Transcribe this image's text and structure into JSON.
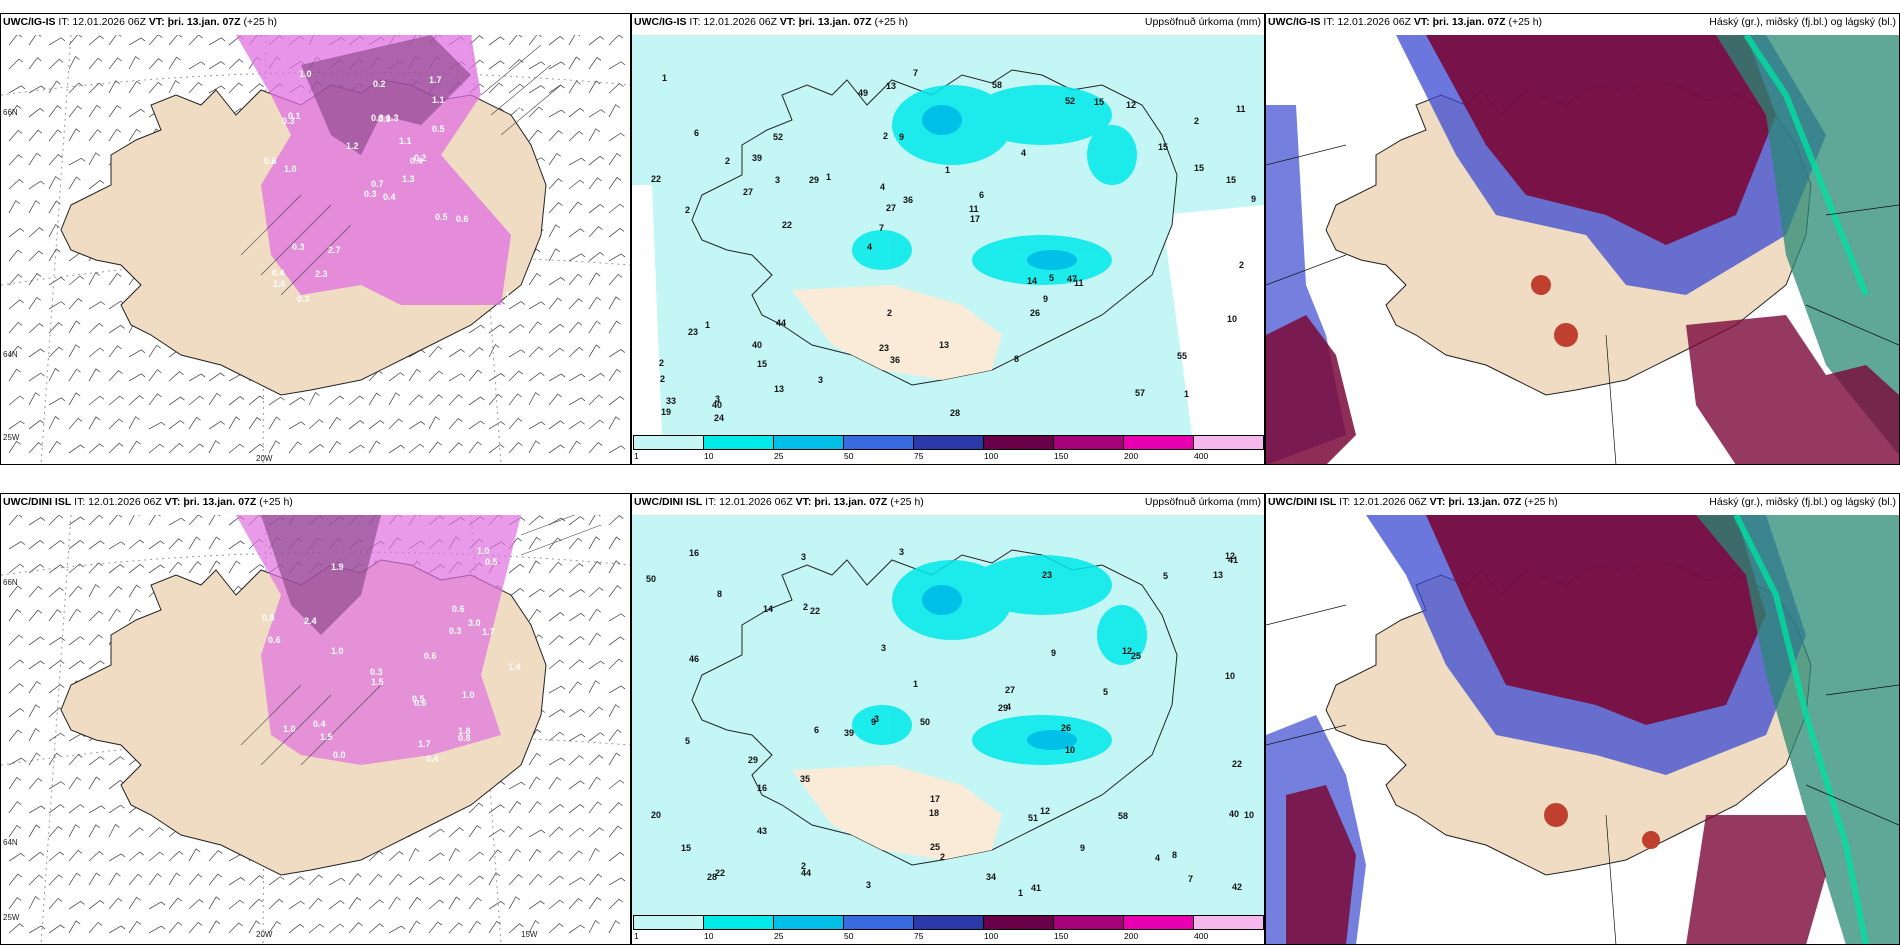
{
  "panels": {
    "top_left": {
      "model": "UWC/IG-IS",
      "it": "IT: 12.01.2026 06Z",
      "vt_label": "VT:",
      "vt": "þri. 13.jan. 07Z",
      "lead": "(+25 h)",
      "right": ""
    },
    "top_mid": {
      "model": "UWC/IG-IS",
      "it": "IT: 12.01.2026 06Z",
      "vt_label": "VT:",
      "vt": "þri. 13.jan. 07Z",
      "lead": "(+25 h)",
      "right": "Uppsöfnuð úrkoma (mm)"
    },
    "top_right": {
      "model": "UWC/IG-IS",
      "it": "IT: 12.01.2026 06Z",
      "vt_label": "VT:",
      "vt": "þri. 13.jan. 07Z",
      "lead": "(+25 h)",
      "right": "Háský (gr.), miðský (fj.bl.) og lágský (bl.)"
    },
    "bottom_left": {
      "model": "UWC/DINI ISL",
      "it": "IT: 12.01.2026 06Z",
      "vt_label": "VT:",
      "vt": "þri. 13.jan. 07Z",
      "lead": "(+25 h)",
      "right": ""
    },
    "bottom_mid": {
      "model": "UWC/DINI ISL",
      "it": "IT: 12.01.2026 06Z",
      "vt_label": "VT:",
      "vt": "þri. 13.jan. 07Z",
      "lead": "(+25 h)",
      "right": "Uppsöfnuð úrkoma (mm)"
    },
    "bottom_right": {
      "model": "UWC/DINI ISL",
      "it": "IT: 12.01.2026 06Z",
      "vt_label": "VT:",
      "vt": "þri. 13.jan. 07Z",
      "lead": "(+25 h)",
      "right": "Háský (gr.), miðský (fj.bl.) og lágský (bl.)"
    }
  },
  "axis_labels": {
    "lat66": "66N",
    "lat64": "64N",
    "lon25": "25W",
    "lon20": "20W",
    "lon15": "15W"
  },
  "legend": {
    "ticks": [
      "1",
      "10",
      "25",
      "50",
      "75",
      "100",
      "150",
      "200",
      "400"
    ],
    "colors": [
      "#c4f6f6",
      "#00eaea",
      "#00c0e8",
      "#3a6ae0",
      "#2a3aa8",
      "#6a0048",
      "#a8007a",
      "#e800b0",
      "#f4b8ec"
    ]
  },
  "precip_top": [
    "1",
    "2",
    "2",
    "4",
    "4",
    "3",
    "2",
    "1",
    "1",
    "1",
    "2",
    "15",
    "9",
    "6",
    "11",
    "6",
    "13",
    "9",
    "14",
    "15",
    "7",
    "23",
    "27",
    "52",
    "52",
    "44",
    "57",
    "55",
    "47",
    "28",
    "29",
    "27",
    "26",
    "13",
    "15",
    "11",
    "33",
    "36",
    "17",
    "23",
    "15",
    "11",
    "9",
    "8",
    "40",
    "24",
    "19",
    "13",
    "12",
    "7",
    "22",
    "22",
    "39",
    "15",
    "40",
    "58",
    "49",
    "36",
    "10",
    "2",
    "3",
    "5",
    "3",
    "2",
    "1",
    "2",
    "2",
    "4"
  ],
  "precip_bottom": [
    "3",
    "1",
    "2",
    "9",
    "3",
    "8",
    "6",
    "7",
    "3",
    "3",
    "5",
    "2",
    "3",
    "18",
    "23",
    "29",
    "46",
    "44",
    "39",
    "50",
    "51",
    "41",
    "27",
    "28",
    "25",
    "29",
    "20",
    "16",
    "16",
    "10",
    "50",
    "41",
    "17",
    "13",
    "43",
    "26",
    "40",
    "15",
    "9",
    "8",
    "4",
    "5",
    "10",
    "22",
    "22",
    "12",
    "22",
    "34",
    "14",
    "25",
    "12",
    "10",
    "42",
    "58",
    "35",
    "12",
    "9",
    "1",
    "2",
    "5",
    "4"
  ],
  "snow_top": [
    "0.4",
    "0.3",
    "0.7",
    "0.4",
    "0.4",
    "2.7",
    "1.7",
    "1.3",
    "1.1",
    "1.3",
    "1.0",
    "1.0",
    "1.0",
    "0.9",
    "0.3",
    "0.5",
    "0.3",
    "0.3",
    "1.1",
    "0.3",
    "1.2",
    "1.6",
    "2.3",
    "0.9",
    "0.2",
    "0.6",
    "0.1",
    "0.2",
    "0.6",
    "0.5"
  ],
  "snow_bottom": [
    "0.4",
    "1.9",
    "0.4",
    "2.4",
    "3.0",
    "1.7",
    "1.4",
    "1.0",
    "1.5",
    "1.5",
    "1.0",
    "0.9",
    "0.3",
    "0.5",
    "0.3",
    "1.0",
    "0.6",
    "0.5",
    "1.0",
    "1.7",
    "1.8",
    "0.6",
    "0.0",
    "0.8",
    "0.6",
    "0.6"
  ]
}
